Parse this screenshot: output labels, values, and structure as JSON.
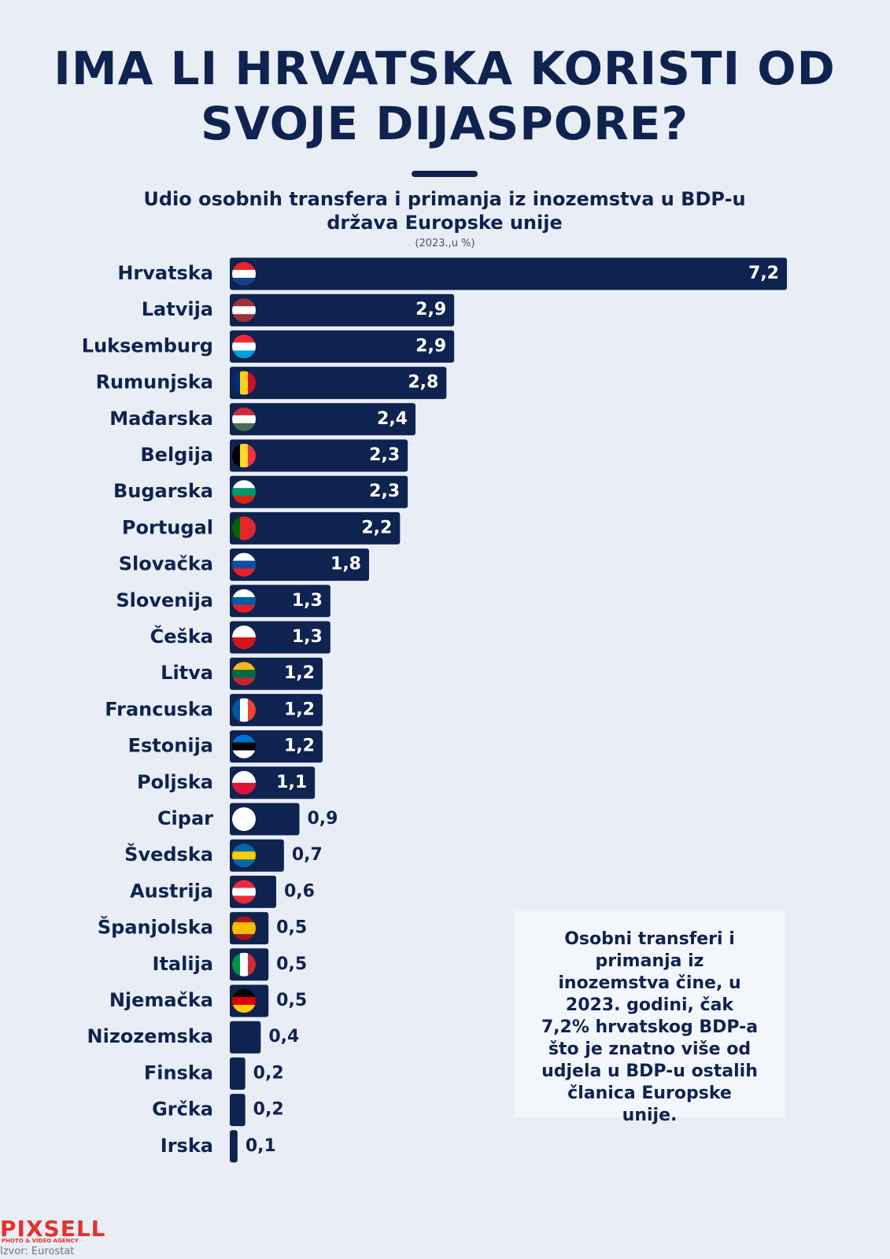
{
  "chart_data": {
    "type": "bar",
    "orientation": "horizontal",
    "title": "IMA LI HRVATSKA KORISTI OD SVOJE DIJASPORE?",
    "subtitle": "Udio osobnih transfera i primanja iz inozemstva u BDP-u država Europske unije",
    "note": "(2023.,u %)",
    "categories": [
      "Hrvatska",
      "Latvija",
      "Luksemburg",
      "Rumunjska",
      "Mađarska",
      "Belgija",
      "Bugarska",
      "Portugal",
      "Slovačka",
      "Slovenija",
      "Češka",
      "Litva",
      "Francuska",
      "Estonija",
      "Poljska",
      "Cipar",
      "Švedska",
      "Austrija",
      "Španjolska",
      "Italija",
      "Njemačka",
      "Nizozemska",
      "Finska",
      "Grčka",
      "Irska"
    ],
    "values": [
      7.2,
      2.9,
      2.9,
      2.8,
      2.4,
      2.3,
      2.3,
      2.2,
      1.8,
      1.3,
      1.3,
      1.2,
      1.2,
      1.2,
      1.1,
      0.9,
      0.7,
      0.6,
      0.5,
      0.5,
      0.5,
      0.4,
      0.2,
      0.2,
      0.1
    ],
    "value_labels": [
      "7,2",
      "2,9",
      "2,9",
      "2,8",
      "2,4",
      "2,3",
      "2,3",
      "2,2",
      "1,8",
      "1,3",
      "1,3",
      "1,2",
      "1,2",
      "1,2",
      "1,1",
      "0,9",
      "0,7",
      "0,6",
      "0,5",
      "0,5",
      "0,5",
      "0,4",
      "0,2",
      "0,2",
      "0,1"
    ],
    "color": "#0f2350",
    "annotation": "Osobni transferi i primanja iz inozemstva čine, u 2023. godini, čak 7,2% hrvatskog BDP-a što je znatno više od udjela u BDP-u ostalih članica Europske unije."
  },
  "logo": {
    "name": "PIXSELL",
    "tagline": "PHOTO & VIDEO AGENCY"
  },
  "source": "Izvor: Eurostat"
}
